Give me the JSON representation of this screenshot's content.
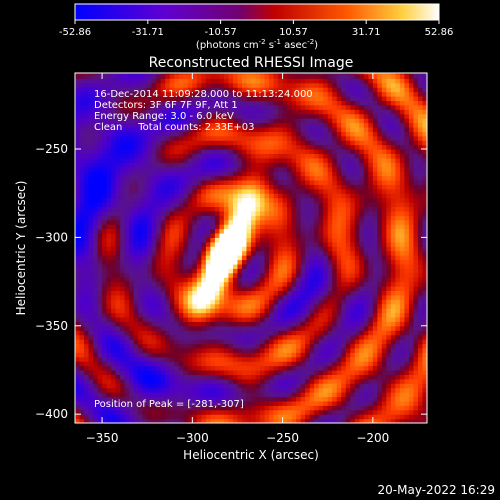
{
  "colorbar": {
    "tick_labels": [
      "-52.86",
      "-31.71",
      "-10.57",
      "10.57",
      "31.71",
      "52.86"
    ],
    "min": -52.86,
    "max": 52.86,
    "units_prefix": "(photons cm",
    "units_exp1": "-2",
    "units_mid": " s",
    "units_exp2": "-1",
    "units_mid2": " asec",
    "units_exp3": "-2",
    "units_suffix": ")"
  },
  "chart_data": {
    "type": "heatmap",
    "title": "Reconstructed RHESSI Image",
    "xlabel": "Heliocentric X (arcsec)",
    "ylabel": "Heliocentric Y (arcsec)",
    "xlim": [
      -365,
      -170
    ],
    "ylim": [
      -405,
      -207
    ],
    "x_ticks": [
      -350,
      -300,
      -250,
      -200
    ],
    "y_ticks": [
      -250,
      -300,
      -350,
      -400
    ],
    "x_tick_labels": [
      "−350",
      "−300",
      "−250",
      "−200"
    ],
    "y_tick_labels": [
      "−250",
      "−300",
      "−350",
      "−400"
    ],
    "peak": {
      "x": -281,
      "y": -307,
      "value": 52.86
    },
    "annotations": [
      "16-Dec-2014 11:09:28.000 to 11:13:24.000",
      "Detectors: 3F 6F 7F 9F, Att 1",
      "Energy Range: 3.0 - 6.0 keV",
      "Clean     Total counts: 2.33E+03"
    ],
    "peak_label": "Position of Peak = [-281,-307]",
    "colormap": "rhessi-heat",
    "colors": {
      "low": "#0000ff",
      "mid": "#8000c0",
      "high": "#ffffff",
      "bg": "#000000"
    }
  },
  "footer_date": "20-May-2022 16:29"
}
